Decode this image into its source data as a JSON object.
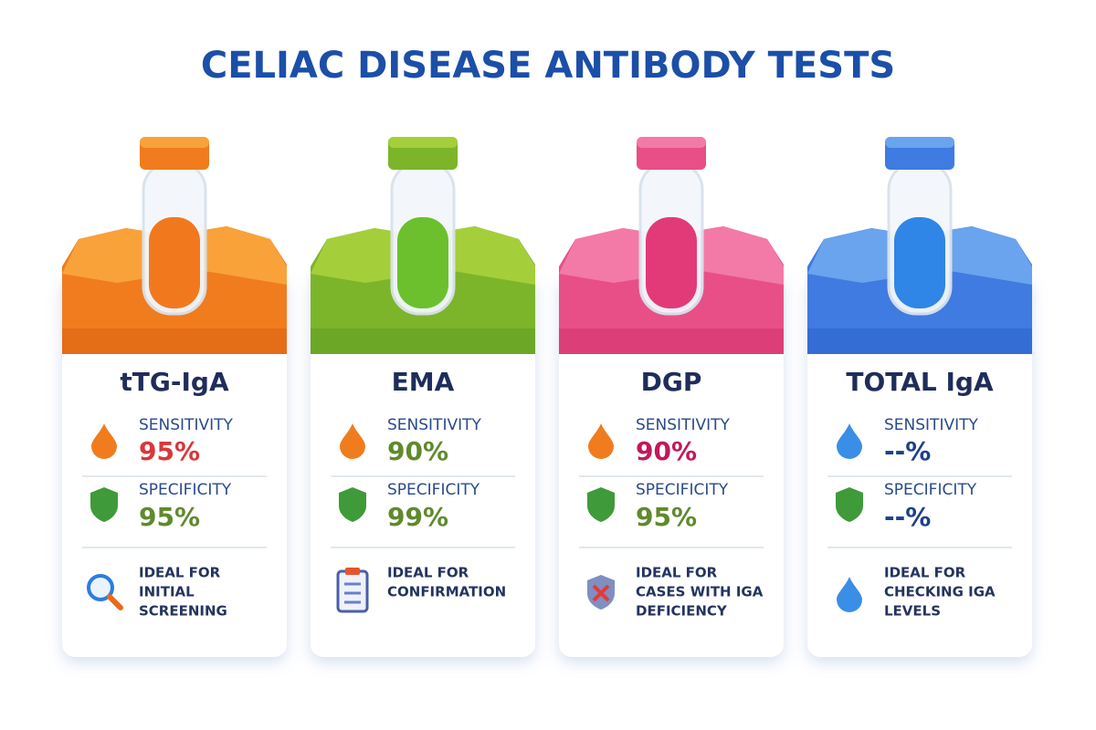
{
  "header": {
    "title": "CELIAC DISEASE ANTIBODY TESTS"
  },
  "cards": [
    {
      "name": "tTG-IgA",
      "sensitivity_label": "SENSITIVITY",
      "sensitivity": "95%",
      "specificity_label": "SPECIFICITY",
      "specificity": "95%",
      "ideal": [
        "IDEAL FOR",
        "INITIAL",
        "SCREENING"
      ]
    },
    {
      "name": "EMA",
      "sensitivity_label": "SENSITIVITY",
      "sensitivity": "90%",
      "specificity_label": "SPECIFICITY",
      "specificity": "99%",
      "ideal": [
        "IDEAL FOR",
        "CONFIRMATION"
      ]
    },
    {
      "name": "DGP",
      "sensitivity_label": "SENSITIVITY",
      "sensitivity": "90%",
      "specificity_label": "SPECIFICITY",
      "specificity": "95%",
      "ideal": [
        "IDEAL FOR",
        "CASES WITH IGA",
        "DEFICIENCY"
      ]
    },
    {
      "name": "TOTAL IgA",
      "sensitivity_label": "SENSITIVITY",
      "sensitivity": "--%",
      "specificity_label": "SPECIFICITY",
      "specificity": "--%",
      "ideal": [
        "IDEAL FOR",
        "CHECKING IGA",
        "LEVELS"
      ]
    }
  ]
}
